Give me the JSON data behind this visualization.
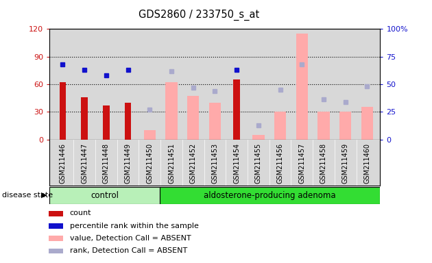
{
  "title": "GDS2860 / 233750_s_at",
  "samples": [
    "GSM211446",
    "GSM211447",
    "GSM211448",
    "GSM211449",
    "GSM211450",
    "GSM211451",
    "GSM211452",
    "GSM211453",
    "GSM211454",
    "GSM211455",
    "GSM211456",
    "GSM211457",
    "GSM211458",
    "GSM211459",
    "GSM211460"
  ],
  "control_count": 5,
  "count_values": [
    62,
    46,
    37,
    40,
    null,
    null,
    null,
    null,
    65,
    null,
    null,
    null,
    null,
    null,
    null
  ],
  "percentile_values": [
    68,
    63,
    58,
    63,
    null,
    null,
    null,
    null,
    63,
    null,
    null,
    null,
    null,
    null,
    null
  ],
  "absent_value_values": [
    null,
    null,
    null,
    null,
    10,
    62,
    47,
    40,
    null,
    5,
    30,
    115,
    30,
    30,
    35
  ],
  "absent_rank_values": [
    null,
    null,
    null,
    null,
    27,
    62,
    47,
    44,
    null,
    13,
    45,
    68,
    36,
    34,
    48
  ],
  "left_ylim": [
    0,
    120
  ],
  "left_yticks": [
    0,
    30,
    60,
    90,
    120
  ],
  "right_yticks_left_scale": [
    0,
    30,
    60,
    90,
    120
  ],
  "right_yticklabels": [
    "0",
    "25",
    "50",
    "75",
    "100%"
  ],
  "color_count": "#cc1111",
  "color_percentile": "#1111cc",
  "color_absent_value": "#ffaaaa",
  "color_absent_rank": "#aaaacc",
  "background_plot": "#d8d8d8",
  "background_fig": "#ffffff",
  "control_color": "#b8f0b8",
  "adenoma_color": "#33dd33",
  "disease_state_label": "disease state",
  "legend_items": [
    {
      "color": "#cc1111",
      "label": "count"
    },
    {
      "color": "#1111cc",
      "label": "percentile rank within the sample"
    },
    {
      "color": "#ffaaaa",
      "label": "value, Detection Call = ABSENT"
    },
    {
      "color": "#aaaacc",
      "label": "rank, Detection Call = ABSENT"
    }
  ]
}
